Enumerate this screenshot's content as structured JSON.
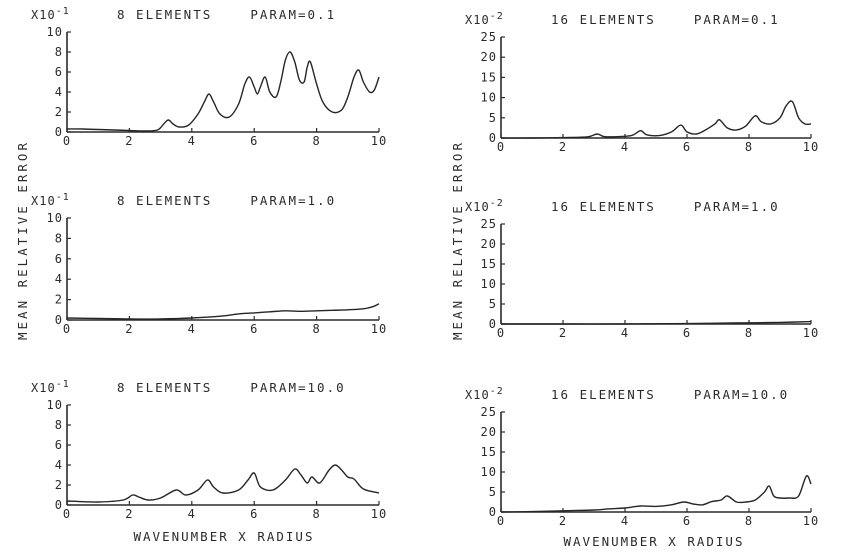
{
  "figure": {
    "ylabel_left": "MEAN RELATIVE ERROR",
    "ylabel_right": "MEAN RELATIVE ERROR",
    "xlabel_left": "WAVENUMBER X RADIUS",
    "xlabel_right": "WAVENUMBER X RADIUS"
  },
  "chart_data": [
    {
      "type": "line",
      "title": "8 ELEMENTS    PARAM=0.1",
      "scale": "X10-1",
      "xlim": [
        0,
        10
      ],
      "ylim": [
        0,
        10
      ],
      "xticks": [
        "0",
        "2",
        "4",
        "6",
        "8",
        "10"
      ],
      "yticks": [
        "0",
        "2",
        "4",
        "6",
        "8",
        "10"
      ],
      "x": [
        0,
        0.5,
        1,
        1.5,
        2,
        2.5,
        2.9,
        3.1,
        3.25,
        3.4,
        3.6,
        3.9,
        4.2,
        4.4,
        4.55,
        4.7,
        4.9,
        5.2,
        5.5,
        5.7,
        5.85,
        6.0,
        6.1,
        6.2,
        6.35,
        6.5,
        6.7,
        6.85,
        7.0,
        7.15,
        7.3,
        7.45,
        7.6,
        7.7,
        7.8,
        8.0,
        8.2,
        8.5,
        8.8,
        9.0,
        9.2,
        9.35,
        9.5,
        9.7,
        9.85,
        10
      ],
      "series": [
        {
          "values": [
            0.3,
            0.3,
            0.25,
            0.2,
            0.15,
            0.1,
            0.2,
            0.8,
            1.2,
            0.8,
            0.5,
            0.7,
            1.8,
            3.0,
            3.8,
            3.0,
            1.8,
            1.5,
            2.8,
            4.8,
            5.5,
            4.5,
            3.8,
            4.5,
            5.5,
            4.0,
            3.5,
            5.0,
            7.2,
            8.0,
            7.0,
            5.2,
            5.0,
            6.5,
            7.0,
            4.8,
            3.0,
            2.0,
            2.2,
            3.5,
            5.5,
            6.2,
            5.0,
            4.0,
            4.2,
            5.5
          ]
        }
      ]
    },
    {
      "type": "line",
      "title": "16 ELEMENTS    PARAM=0.1",
      "scale": "X10-2",
      "xlim": [
        0,
        10
      ],
      "ylim": [
        0,
        25
      ],
      "xticks": [
        "0",
        "2",
        "4",
        "6",
        "8",
        "10"
      ],
      "yticks": [
        "0",
        "5",
        "10",
        "15",
        "20",
        "25"
      ],
      "x": [
        0,
        1,
        2,
        2.8,
        3.1,
        3.3,
        3.6,
        4.2,
        4.5,
        4.7,
        5.1,
        5.5,
        5.8,
        6.0,
        6.3,
        6.6,
        6.9,
        7.05,
        7.3,
        7.6,
        7.9,
        8.2,
        8.4,
        8.7,
        9.0,
        9.2,
        9.4,
        9.6,
        9.8,
        10
      ],
      "series": [
        {
          "values": [
            0,
            0,
            0.1,
            0.3,
            1.0,
            0.4,
            0.3,
            0.6,
            1.8,
            0.8,
            0.6,
            1.5,
            3.2,
            1.5,
            1.0,
            2.0,
            3.5,
            4.5,
            2.5,
            2.0,
            3.0,
            5.5,
            4.0,
            3.5,
            5.0,
            8.0,
            9.0,
            5.0,
            3.5,
            3.5
          ]
        }
      ]
    },
    {
      "type": "line",
      "title": "8 ELEMENTS    PARAM=1.0",
      "scale": "X10-1",
      "xlim": [
        0,
        10
      ],
      "ylim": [
        0,
        10
      ],
      "xticks": [
        "0",
        "2",
        "4",
        "6",
        "8",
        "10"
      ],
      "yticks": [
        "0",
        "2",
        "4",
        "6",
        "8",
        "10"
      ],
      "x": [
        0,
        1,
        2,
        3,
        4,
        5,
        5.5,
        6,
        6.5,
        7,
        7.5,
        8,
        8.5,
        9,
        9.5,
        9.8,
        10
      ],
      "series": [
        {
          "values": [
            0.2,
            0.15,
            0.1,
            0.1,
            0.2,
            0.4,
            0.6,
            0.7,
            0.8,
            0.9,
            0.85,
            0.9,
            0.95,
            1.0,
            1.1,
            1.3,
            1.6
          ]
        }
      ]
    },
    {
      "type": "line",
      "title": "16 ELEMENTS    PARAM=1.0",
      "scale": "X10-2",
      "xlim": [
        0,
        10
      ],
      "ylim": [
        0,
        25
      ],
      "xticks": [
        "0",
        "2",
        "4",
        "6",
        "8",
        "10"
      ],
      "yticks": [
        "0",
        "5",
        "10",
        "15",
        "20",
        "25"
      ],
      "x": [
        0,
        2,
        4,
        6,
        7,
        8,
        9,
        10
      ],
      "series": [
        {
          "values": [
            0,
            0,
            0,
            0.1,
            0.2,
            0.3,
            0.4,
            0.6
          ]
        }
      ]
    },
    {
      "type": "line",
      "title": "8 ELEMENTS    PARAM=10.0",
      "scale": "X10-1",
      "xlim": [
        0,
        10
      ],
      "ylim": [
        0,
        10
      ],
      "xticks": [
        "0",
        "2",
        "4",
        "6",
        "8",
        "10"
      ],
      "yticks": [
        "0",
        "2",
        "4",
        "6",
        "8",
        "10"
      ],
      "x": [
        0,
        1,
        1.8,
        2.1,
        2.3,
        2.6,
        3.0,
        3.5,
        3.8,
        4.2,
        4.5,
        4.7,
        5.0,
        5.5,
        5.8,
        6.0,
        6.2,
        6.6,
        7.0,
        7.3,
        7.5,
        7.7,
        7.85,
        8.1,
        8.4,
        8.6,
        8.8,
        9.0,
        9.2,
        9.5,
        10
      ],
      "series": [
        {
          "values": [
            0.4,
            0.3,
            0.5,
            1.0,
            0.8,
            0.5,
            0.7,
            1.5,
            1.0,
            1.5,
            2.5,
            1.8,
            1.2,
            1.5,
            2.5,
            3.2,
            1.8,
            1.5,
            2.5,
            3.6,
            3.0,
            2.2,
            2.8,
            2.2,
            3.5,
            4.0,
            3.5,
            2.8,
            2.6,
            1.6,
            1.2
          ]
        }
      ]
    },
    {
      "type": "line",
      "title": "16 ELEMENTS    PARAM=10.0",
      "scale": "X10-2",
      "xlim": [
        0,
        10
      ],
      "ylim": [
        0,
        25
      ],
      "xticks": [
        "0",
        "2",
        "4",
        "6",
        "8",
        "10"
      ],
      "yticks": [
        "0",
        "5",
        "10",
        "15",
        "20",
        "25"
      ],
      "x": [
        0,
        1,
        2,
        3,
        3.5,
        4,
        4.5,
        5,
        5.5,
        5.9,
        6.2,
        6.5,
        6.8,
        7.1,
        7.3,
        7.6,
        7.9,
        8.2,
        8.5,
        8.65,
        8.8,
        9.0,
        9.3,
        9.6,
        9.85,
        10
      ],
      "series": [
        {
          "values": [
            0,
            0.1,
            0.3,
            0.5,
            0.8,
            1.0,
            1.5,
            1.4,
            1.8,
            2.5,
            2.0,
            1.8,
            2.6,
            3.0,
            4.0,
            2.5,
            2.5,
            3.0,
            5.0,
            6.5,
            4.0,
            3.5,
            3.5,
            4.0,
            9.0,
            7.0
          ]
        }
      ]
    }
  ]
}
